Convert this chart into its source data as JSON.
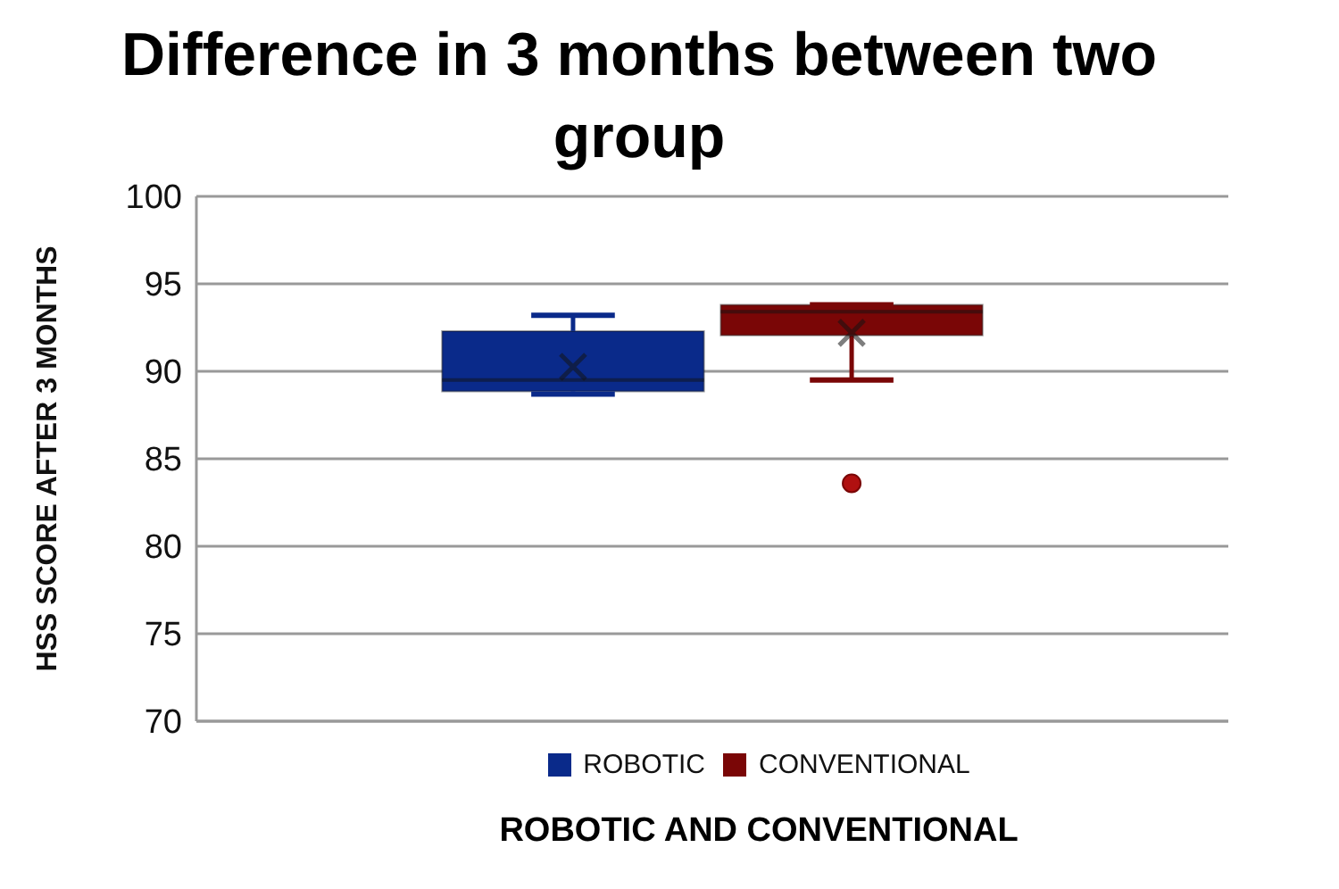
{
  "chart_data": {
    "type": "box",
    "title": "Difference in 3 months between two group",
    "xlabel": "ROBOTIC AND CONVENTIONAL",
    "ylabel": "HSS SCORE AFTER 3 MONTHS",
    "categories": [
      null
    ],
    "ylim": [
      70,
      100
    ],
    "yticks": [
      70,
      75,
      80,
      85,
      90,
      95,
      100
    ],
    "grid": "y",
    "legend": "bottom",
    "series": [
      {
        "name": "ROBOTIC",
        "color": "#0a2a8a",
        "boxes": [
          {
            "low": 88.7,
            "q1": 88.85,
            "median": 89.5,
            "q3": 92.3,
            "high": 93.2,
            "mean": 90.25
          }
        ]
      },
      {
        "name": "CONVENTIONAL",
        "color": "#7a0606",
        "boxes": [
          {
            "low": 89.5,
            "q1": 92.05,
            "median": 93.4,
            "q3": 93.8,
            "high": 93.8,
            "mean": 92.2,
            "outliers": [
              83.6
            ]
          }
        ]
      }
    ]
  }
}
